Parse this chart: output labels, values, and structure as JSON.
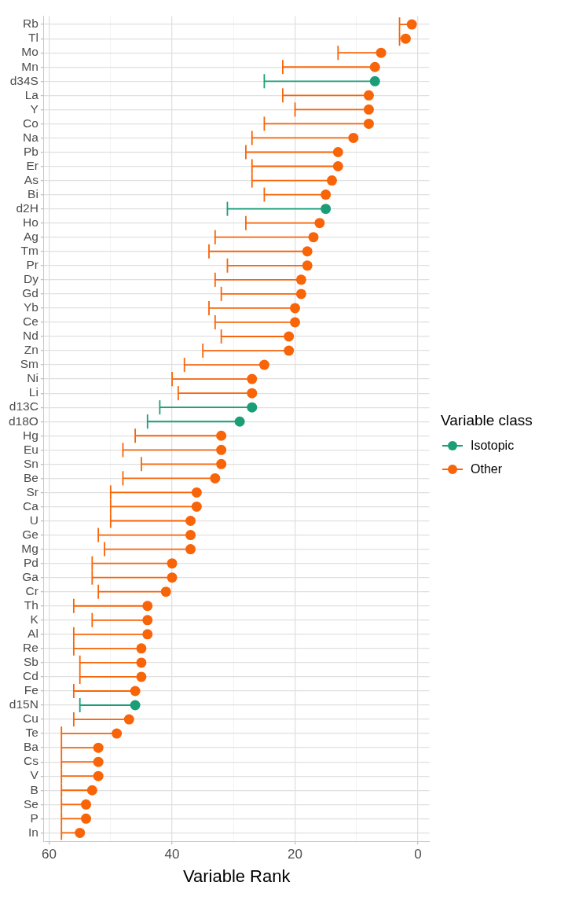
{
  "chart_data": {
    "type": "scatter",
    "orientation": "horizontal",
    "xlabel": "Variable Rank",
    "legend_title": "Variable class",
    "legend": "right",
    "grid": true,
    "marker": "circle",
    "xlim": [
      60.85,
      -1.85
    ],
    "xticks": [
      60,
      {
        "value": 50,
        "label": null
      },
      40,
      {
        "value": 30,
        "label": null
      },
      20,
      {
        "value": 10,
        "label": null
      },
      0
    ],
    "categories": [
      "Rb",
      "Tl",
      "Mo",
      "Mn",
      "d34S",
      "La",
      "Y",
      "Co",
      "Na",
      "Pb",
      "Er",
      "As",
      "Bi",
      "d2H",
      "Ho",
      "Ag",
      "Tm",
      "Pr",
      "Dy",
      "Gd",
      "Yb",
      "Ce",
      "Nd",
      "Zn",
      "Sm",
      "Ni",
      "Li",
      "d13C",
      "d18O",
      "Hg",
      "Eu",
      "Sn",
      "Be",
      "Sr",
      "Ca",
      "U",
      "Ge",
      "Mg",
      "Pd",
      "Ga",
      "Cr",
      "Th",
      "K",
      "Al",
      "Re",
      "Sb",
      "Cd",
      "Fe",
      "d15N",
      "Cu",
      "Te",
      "Ba",
      "Cs",
      "V",
      "B",
      "Se",
      "P",
      "In"
    ],
    "series": [
      {
        "name": "Isotopic",
        "color": "#1b9e77",
        "values": [
          null,
          null,
          null,
          null,
          7,
          null,
          null,
          null,
          null,
          null,
          null,
          null,
          null,
          15,
          null,
          null,
          null,
          null,
          null,
          null,
          null,
          null,
          null,
          null,
          null,
          null,
          null,
          27,
          29,
          null,
          null,
          null,
          null,
          null,
          null,
          null,
          null,
          null,
          null,
          null,
          null,
          null,
          null,
          null,
          null,
          null,
          null,
          null,
          46,
          null,
          null,
          null,
          null,
          null,
          null,
          null,
          null,
          null
        ],
        "errors": [
          null,
          null,
          null,
          null,
          [
            7,
            25
          ],
          null,
          null,
          null,
          null,
          null,
          null,
          null,
          null,
          [
            15,
            31
          ],
          null,
          null,
          null,
          null,
          null,
          null,
          null,
          null,
          null,
          null,
          null,
          null,
          null,
          [
            27,
            42
          ],
          [
            29,
            44
          ],
          null,
          null,
          null,
          null,
          null,
          null,
          null,
          null,
          null,
          null,
          null,
          null,
          null,
          null,
          null,
          null,
          null,
          null,
          null,
          [
            46,
            55
          ],
          null,
          null,
          null,
          null,
          null,
          null,
          null,
          null,
          null
        ]
      },
      {
        "name": "Other",
        "color": "#f86408",
        "values": [
          1,
          2,
          6,
          7,
          null,
          8,
          8,
          8,
          10.5,
          13,
          13,
          14,
          15,
          null,
          16,
          17,
          18,
          18,
          19,
          19,
          20,
          20,
          21,
          21,
          25,
          27,
          27,
          null,
          null,
          32,
          32,
          32,
          33,
          36,
          36,
          37,
          37,
          37,
          40,
          40,
          41,
          44,
          44,
          44,
          45,
          45,
          45,
          46,
          null,
          47,
          49,
          52,
          52,
          52,
          53,
          54,
          54,
          55
        ],
        "errors": [
          [
            1,
            3
          ],
          [
            2,
            3
          ],
          [
            6,
            13
          ],
          [
            7,
            22
          ],
          null,
          [
            8,
            22
          ],
          [
            8,
            20
          ],
          [
            8,
            25
          ],
          [
            10.5,
            27
          ],
          [
            13,
            28
          ],
          [
            13,
            27
          ],
          [
            14,
            27
          ],
          [
            15,
            25
          ],
          null,
          [
            16,
            28
          ],
          [
            17,
            33
          ],
          [
            18,
            34
          ],
          [
            18,
            31
          ],
          [
            19,
            33
          ],
          [
            19,
            32
          ],
          [
            20,
            34
          ],
          [
            20,
            33
          ],
          [
            21,
            32
          ],
          [
            21,
            35
          ],
          [
            25,
            38
          ],
          [
            27,
            40
          ],
          [
            27,
            39
          ],
          null,
          null,
          [
            32,
            46
          ],
          [
            32,
            48
          ],
          [
            32,
            45
          ],
          [
            33,
            48
          ],
          [
            36,
            50
          ],
          [
            36,
            50
          ],
          [
            37,
            50
          ],
          [
            37,
            52
          ],
          [
            37,
            51
          ],
          [
            40,
            53
          ],
          [
            40,
            53
          ],
          [
            41,
            52
          ],
          [
            44,
            56
          ],
          [
            44,
            53
          ],
          [
            44,
            56
          ],
          [
            45,
            56
          ],
          [
            45,
            55
          ],
          [
            45,
            55
          ],
          [
            46,
            56
          ],
          null,
          [
            47,
            56
          ],
          [
            49,
            58
          ],
          [
            52,
            58
          ],
          [
            52,
            58
          ],
          [
            52,
            58
          ],
          [
            53,
            58
          ],
          [
            54,
            58
          ],
          [
            54,
            58
          ],
          [
            55,
            58
          ]
        ]
      }
    ]
  }
}
